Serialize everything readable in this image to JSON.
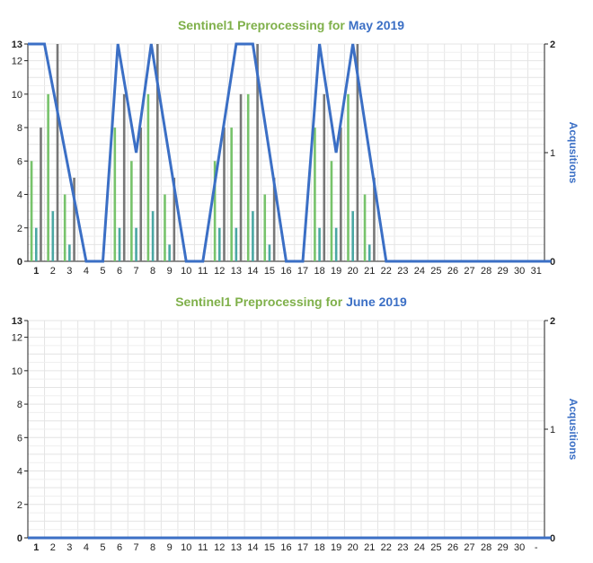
{
  "chart_data": [
    {
      "type": "bar",
      "title_prefix": "Sentinel1 Preprocessing for",
      "title_month": "May 2019",
      "xlabel": "",
      "ylabel": "",
      "ylabel_right": "Acqusitions",
      "ylim": [
        0,
        13
      ],
      "y_ticks": [
        0,
        2,
        4,
        6,
        8,
        10,
        12,
        13
      ],
      "y2lim": [
        0,
        2
      ],
      "y2_ticks": [
        0,
        1,
        2
      ],
      "categories": [
        "1",
        "2",
        "3",
        "4",
        "5",
        "6",
        "7",
        "8",
        "9",
        "10",
        "11",
        "12",
        "13",
        "14",
        "15",
        "16",
        "17",
        "18",
        "19",
        "20",
        "21",
        "22",
        "23",
        "24",
        "25",
        "26",
        "27",
        "28",
        "29",
        "30",
        "31"
      ],
      "series": [
        {
          "color": "#77c36b",
          "values": [
            6,
            10,
            4,
            0,
            0,
            8,
            6,
            10,
            4,
            0,
            0,
            6,
            8,
            10,
            4,
            0,
            0,
            8,
            6,
            10,
            4,
            0,
            0,
            0,
            0,
            0,
            0,
            0,
            0,
            0,
            0
          ]
        },
        {
          "color": "#4aa7a3",
          "values": [
            2,
            3,
            1,
            0,
            0,
            2,
            2,
            3,
            1,
            0,
            0,
            2,
            2,
            3,
            1,
            0,
            0,
            2,
            2,
            3,
            1,
            0,
            0,
            0,
            0,
            0,
            0,
            0,
            0,
            0,
            0
          ]
        },
        {
          "color": "#777777",
          "values": [
            8,
            13,
            5,
            0,
            0,
            10,
            8,
            13,
            5,
            0,
            0,
            8,
            10,
            13,
            5,
            0,
            0,
            10,
            8,
            13,
            5,
            0,
            0,
            0,
            0,
            0,
            0,
            0,
            0,
            0,
            0
          ]
        }
      ],
      "line_series": {
        "color": "#3b6fc5",
        "axis": "right",
        "x": [
          0.5,
          1.5,
          4.0,
          5.0,
          5.9,
          7.0,
          7.9,
          10.0,
          11.0,
          12.0,
          13.0,
          14.0,
          16.0,
          17.0,
          18.0,
          19.0,
          20.0,
          21.0,
          22.0,
          31.9
        ],
        "values": [
          2,
          2,
          0,
          0,
          2,
          1,
          2,
          0,
          0,
          1,
          2,
          2,
          0,
          0,
          2,
          1,
          2,
          1,
          0,
          0
        ]
      }
    },
    {
      "type": "bar",
      "title_prefix": "Sentinel1 Preprocessing for",
      "title_month": "June 2019",
      "xlabel": "",
      "ylabel": "",
      "ylabel_right": "Acqusitions",
      "ylim": [
        0,
        13
      ],
      "y_ticks": [
        0,
        2,
        4,
        6,
        8,
        10,
        12,
        13
      ],
      "y2lim": [
        0,
        2
      ],
      "y2_ticks": [
        0,
        1,
        2
      ],
      "categories": [
        "1",
        "2",
        "3",
        "4",
        "5",
        "6",
        "7",
        "8",
        "9",
        "10",
        "11",
        "12",
        "13",
        "14",
        "15",
        "16",
        "17",
        "18",
        "19",
        "20",
        "21",
        "22",
        "23",
        "24",
        "25",
        "26",
        "27",
        "28",
        "29",
        "30",
        "-"
      ],
      "series": [],
      "line_series": {
        "color": "#3b6fc5",
        "axis": "right",
        "x": [
          0.5,
          31.9
        ],
        "values": [
          0,
          0
        ]
      }
    }
  ]
}
